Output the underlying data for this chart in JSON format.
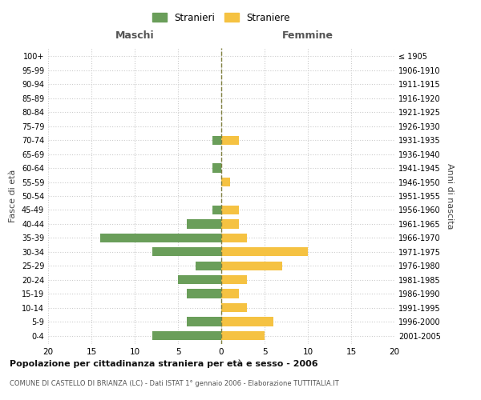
{
  "age_groups": [
    "0-4",
    "5-9",
    "10-14",
    "15-19",
    "20-24",
    "25-29",
    "30-34",
    "35-39",
    "40-44",
    "45-49",
    "50-54",
    "55-59",
    "60-64",
    "65-69",
    "70-74",
    "75-79",
    "80-84",
    "85-89",
    "90-94",
    "95-99",
    "100+"
  ],
  "birth_years": [
    "2001-2005",
    "1996-2000",
    "1991-1995",
    "1986-1990",
    "1981-1985",
    "1976-1980",
    "1971-1975",
    "1966-1970",
    "1961-1965",
    "1956-1960",
    "1951-1955",
    "1946-1950",
    "1941-1945",
    "1936-1940",
    "1931-1935",
    "1926-1930",
    "1921-1925",
    "1916-1920",
    "1911-1915",
    "1906-1910",
    "≤ 1905"
  ],
  "maschi": [
    8,
    4,
    0,
    4,
    5,
    3,
    8,
    14,
    4,
    1,
    0,
    0,
    1,
    0,
    1,
    0,
    0,
    0,
    0,
    0,
    0
  ],
  "femmine": [
    5,
    6,
    3,
    2,
    3,
    7,
    10,
    3,
    2,
    2,
    0,
    1,
    0,
    0,
    2,
    0,
    0,
    0,
    0,
    0,
    0
  ],
  "color_maschi": "#6a9e5a",
  "color_femmine": "#f5c242",
  "title": "Popolazione per cittadinanza straniera per età e sesso - 2006",
  "subtitle": "COMUNE DI CASTELLO DI BRIANZA (LC) - Dati ISTAT 1° gennaio 2006 - Elaborazione TUTTITALIA.IT",
  "xlabel_left": "Maschi",
  "xlabel_right": "Femmine",
  "ylabel_left": "Fasce di età",
  "ylabel_right": "Anni di nascita",
  "legend_maschi": "Stranieri",
  "legend_femmine": "Straniere",
  "xlim": 20,
  "background_color": "#ffffff",
  "grid_color": "#cccccc"
}
